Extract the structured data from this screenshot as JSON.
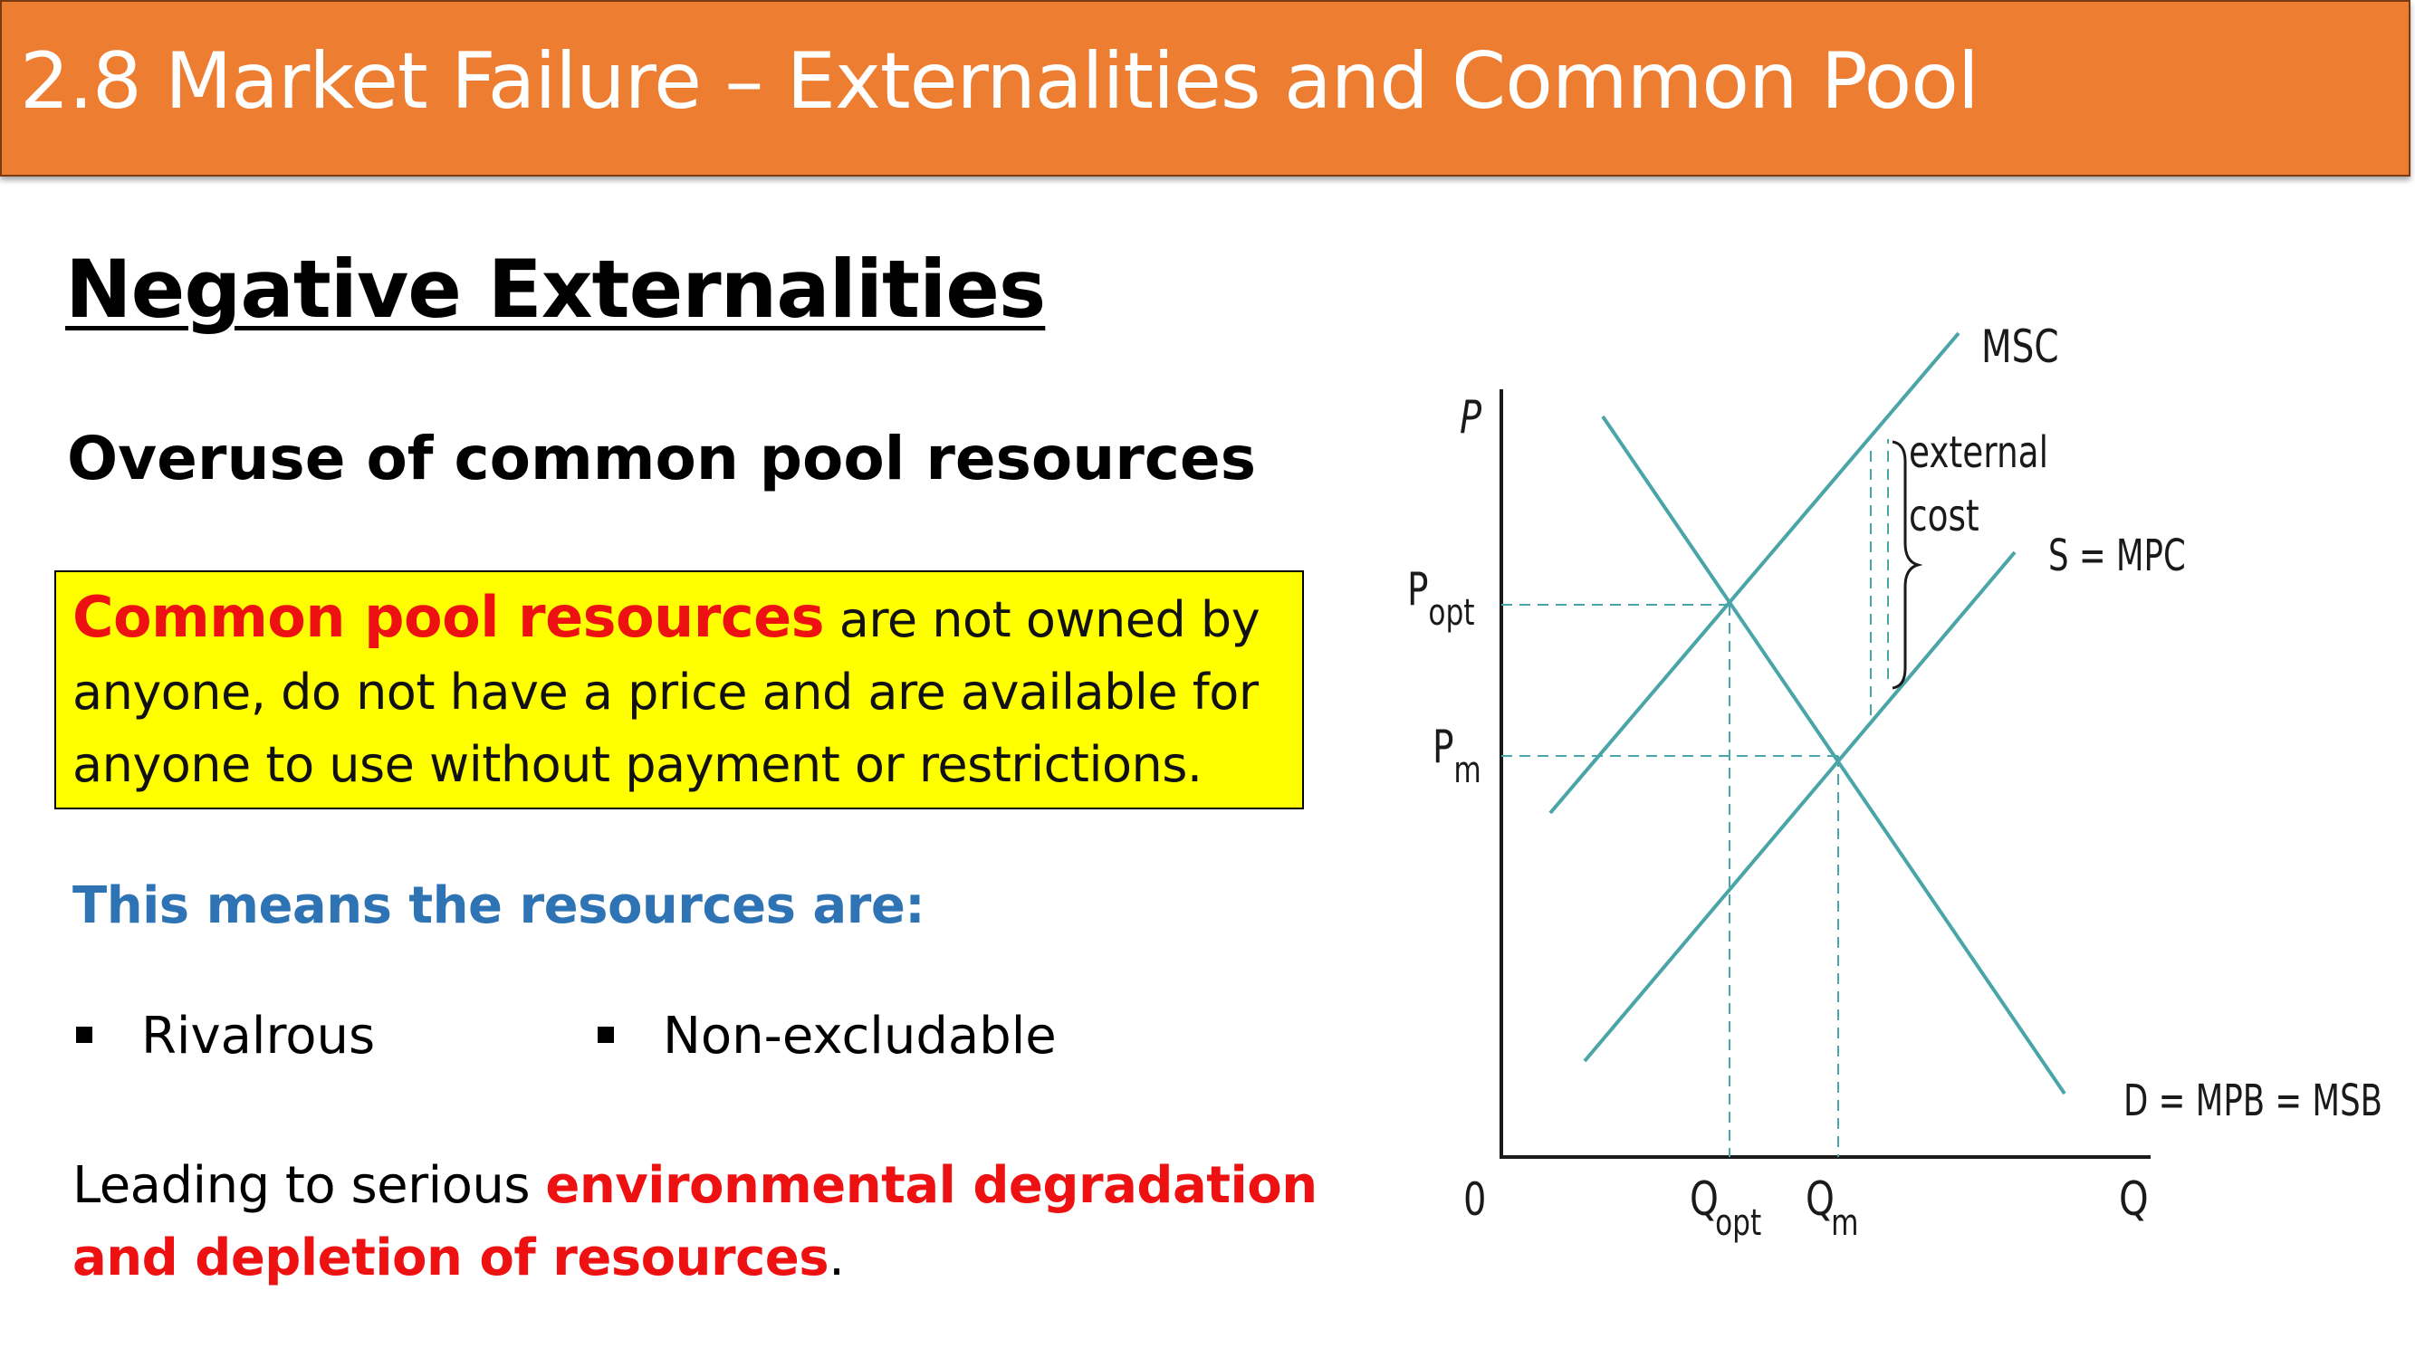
{
  "slide": {
    "title": "2.8 Market Failure – Externalities and Common Pool",
    "heading": "Negative Externalities",
    "subheading": "Overuse of common pool resources",
    "definition": {
      "term": "Common pool resources",
      "line1_rest": " are not owned by",
      "line2": "anyone, do not have a price and are available for",
      "line3": "anyone to use without payment or restrictions."
    },
    "means_label": "This means the resources are:",
    "bullets": [
      "Rivalrous",
      "Non-excludable"
    ],
    "leading": {
      "prefix": "Leading to serious ",
      "emphasis1": "environmental degradation",
      "emphasis2": "and depletion of resources",
      "suffix": "."
    }
  },
  "colors": {
    "title_bar": "#ed7d31",
    "definition_box": "#ffff00",
    "term_red": "#ee1111",
    "means_blue": "#2e74b5",
    "curve_teal": "#4aa5a8"
  },
  "diagram": {
    "axis_y": "P",
    "axis_x": "Q",
    "origin": "0",
    "curves": {
      "msc": "MSC",
      "supply": "S = MPC",
      "demand": "D = MPB = MSB"
    },
    "annotation": [
      "external",
      "cost"
    ],
    "prices": {
      "p_opt_main": "P",
      "p_opt_sub": "opt",
      "p_m_main": "P",
      "p_m_sub": "m"
    },
    "quantities": {
      "q_opt_main": "Q",
      "q_opt_sub": "opt",
      "q_m_main": "Q",
      "q_m_sub": "m"
    }
  }
}
